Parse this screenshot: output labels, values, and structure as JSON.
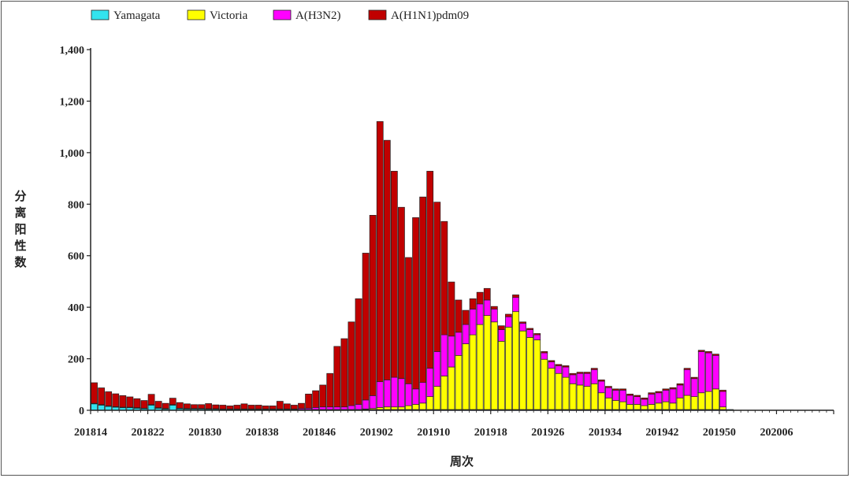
{
  "colors": {
    "yamagata": "#33e3ee",
    "victoria": "#ffff00",
    "h3n2": "#ff00ff",
    "h1n1": "#c00000",
    "axis": "#222222",
    "bar_stroke": "#222222"
  },
  "chart_data": {
    "type": "bar",
    "stacked": true,
    "xlabel": "周次",
    "ylabel": "分离阳性数",
    "ylim": [
      0,
      1400
    ],
    "yticks": [
      0,
      200,
      400,
      600,
      800,
      1000,
      1200,
      1400
    ],
    "ytick_labels": [
      "0",
      "200",
      "400",
      "600",
      "800",
      "1,000",
      "1,200",
      "1,400"
    ],
    "xtick_labels": [
      "201814",
      "201822",
      "201830",
      "201838",
      "201846",
      "201902",
      "201910",
      "201918",
      "201926",
      "201934",
      "201942",
      "201950",
      "202006"
    ],
    "week_slots": 104,
    "grid": false,
    "legend_position": "top",
    "categories": [
      "201814",
      "201815",
      "201816",
      "201817",
      "201818",
      "201819",
      "201820",
      "201821",
      "201822",
      "201823",
      "201824",
      "201825",
      "201826",
      "201827",
      "201828",
      "201829",
      "201830",
      "201831",
      "201832",
      "201833",
      "201834",
      "201835",
      "201836",
      "201837",
      "201838",
      "201839",
      "201840",
      "201841",
      "201842",
      "201843",
      "201844",
      "201845",
      "201846",
      "201847",
      "201848",
      "201849",
      "201850",
      "201851",
      "201852",
      "201901",
      "201902",
      "201903",
      "201904",
      "201905",
      "201906",
      "201907",
      "201908",
      "201909",
      "201910",
      "201911",
      "201912",
      "201913",
      "201914",
      "201915",
      "201916",
      "201917",
      "201918",
      "201919",
      "201920",
      "201921",
      "201922",
      "201923",
      "201924",
      "201925",
      "201926",
      "201927",
      "201928",
      "201929",
      "201930",
      "201931",
      "201932",
      "201933",
      "201934",
      "201935",
      "201936",
      "201937",
      "201938",
      "201939",
      "201940",
      "201941",
      "201942",
      "201943",
      "201944",
      "201945",
      "201946",
      "201947",
      "201948",
      "201949",
      "201950",
      "201951"
    ],
    "series": [
      {
        "name": "Yamagata",
        "color_key": "yamagata",
        "values": [
          25,
          20,
          15,
          12,
          10,
          10,
          8,
          6,
          20,
          8,
          5,
          20,
          6,
          5,
          5,
          5,
          4,
          4,
          3,
          3,
          3,
          3,
          3,
          3,
          3,
          3,
          3,
          3,
          3,
          3,
          3,
          3,
          3,
          3,
          3,
          3,
          3,
          3,
          3,
          3,
          3,
          3,
          3,
          3,
          3,
          3,
          3,
          3,
          3,
          3,
          3,
          3,
          3,
          3,
          3,
          3,
          3,
          3,
          3,
          3,
          3,
          3,
          3,
          3,
          3,
          3,
          3,
          3,
          3,
          3,
          3,
          3,
          3,
          3,
          3,
          3,
          3,
          3,
          3,
          3,
          3,
          3,
          3,
          3,
          3,
          3,
          3,
          3,
          3,
          3
        ]
      },
      {
        "name": "Victoria",
        "color_key": "victoria",
        "values": [
          0,
          0,
          0,
          0,
          0,
          0,
          0,
          0,
          0,
          0,
          0,
          0,
          0,
          0,
          0,
          0,
          0,
          0,
          0,
          0,
          0,
          0,
          0,
          0,
          0,
          0,
          0,
          0,
          0,
          0,
          0,
          0,
          0,
          0,
          0,
          0,
          0,
          0,
          2,
          4,
          8,
          10,
          10,
          10,
          15,
          20,
          25,
          50,
          90,
          130,
          165,
          210,
          255,
          290,
          330,
          365,
          340,
          265,
          320,
          380,
          305,
          280,
          270,
          195,
          160,
          140,
          125,
          100,
          95,
          90,
          100,
          65,
          45,
          35,
          30,
          20,
          20,
          15,
          20,
          25,
          30,
          25,
          45,
          55,
          50,
          65,
          70,
          80,
          10,
          0
        ]
      },
      {
        "name": "A(H3N2)",
        "color_key": "h3n2",
        "values": [
          2,
          2,
          2,
          2,
          2,
          2,
          2,
          2,
          2,
          2,
          2,
          2,
          2,
          2,
          2,
          2,
          2,
          2,
          2,
          2,
          2,
          2,
          2,
          2,
          2,
          2,
          2,
          2,
          2,
          4,
          5,
          8,
          10,
          10,
          10,
          10,
          15,
          20,
          35,
          50,
          100,
          105,
          115,
          110,
          85,
          60,
          80,
          110,
          135,
          160,
          120,
          90,
          75,
          100,
          80,
          60,
          50,
          45,
          40,
          55,
          30,
          30,
          20,
          25,
          25,
          30,
          40,
          35,
          45,
          50,
          55,
          45,
          40,
          40,
          45,
          35,
          30,
          25,
          40,
          40,
          45,
          55,
          50,
          100,
          70,
          160,
          150,
          130,
          60,
          0
        ]
      },
      {
        "name": "A(H1N1)pdm09",
        "color_key": "h1n1",
        "values": [
          80,
          65,
          55,
          50,
          45,
          40,
          35,
          30,
          40,
          25,
          20,
          25,
          22,
          18,
          15,
          15,
          20,
          15,
          15,
          12,
          15,
          20,
          15,
          15,
          12,
          12,
          30,
          20,
          15,
          20,
          55,
          65,
          85,
          130,
          235,
          265,
          325,
          410,
          570,
          700,
          1010,
          930,
          800,
          665,
          490,
          665,
          720,
          765,
          580,
          440,
          210,
          125,
          55,
          40,
          45,
          45,
          10,
          15,
          10,
          10,
          5,
          5,
          5,
          5,
          5,
          5,
          5,
          5,
          5,
          5,
          5,
          5,
          5,
          5,
          5,
          5,
          5,
          5,
          5,
          5,
          5,
          5,
          5,
          5,
          5,
          5,
          5,
          5,
          5,
          0
        ]
      }
    ]
  },
  "legend": {
    "items": [
      {
        "label": "Yamagata",
        "color_key": "yamagata"
      },
      {
        "label": "Victoria",
        "color_key": "victoria"
      },
      {
        "label": "A(H3N2)",
        "color_key": "h3n2"
      },
      {
        "label": "A(H1N1)pdm09",
        "color_key": "h1n1"
      }
    ]
  }
}
